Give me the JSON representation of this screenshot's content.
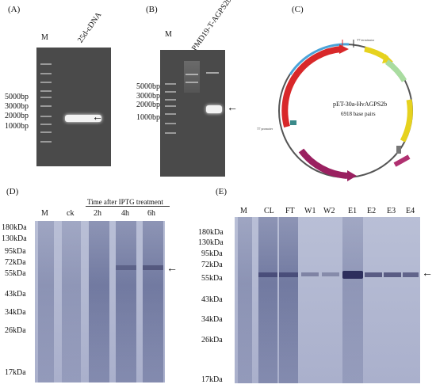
{
  "panelA": {
    "letter": "(A)",
    "lane_m": "M",
    "lane_sample": "25d-cDNA",
    "markers": [
      "5000bp",
      "3000bp",
      "2000bp",
      "1000bp"
    ],
    "arrow": "←"
  },
  "panelB": {
    "letter": "(B)",
    "lane_m": "M",
    "lane_sample": "PMD19-T-AGPS2b",
    "markers": [
      "5000bp",
      "3000bp",
      "2000bp",
      "1000bp"
    ],
    "arrow": "←"
  },
  "panelC": {
    "letter": "(C)",
    "plasmid_name": "pET-30a-HvAGPS2b",
    "plasmid_size": "6918 base pairs",
    "feature_t7_promoter": "T7 promoter",
    "feature_t7_terminator": "T7 terminator"
  },
  "panelD": {
    "letter": "(D)",
    "lane_m": "M",
    "lane_ck": "ck",
    "header": "Time after IPTG treatment",
    "lanes": [
      "2h",
      "4h",
      "6h"
    ],
    "markers": [
      "180kDa",
      "130kDa",
      "95kDa",
      "72kDa",
      "55kDa",
      "43kDa",
      "34kDa",
      "26kDa",
      "17kDa"
    ],
    "arrow": "←"
  },
  "panelE": {
    "letter": "(E)",
    "lane_m": "M",
    "lanes": [
      "CL",
      "FT",
      "W1",
      "W2",
      "E1",
      "E2",
      "E3",
      "E4"
    ],
    "markers": [
      "180kDa",
      "130kDa",
      "95kDa",
      "72kDa",
      "55kDa",
      "43kDa",
      "34kDa",
      "26kDa",
      "17kDa"
    ],
    "arrow": "←"
  }
}
